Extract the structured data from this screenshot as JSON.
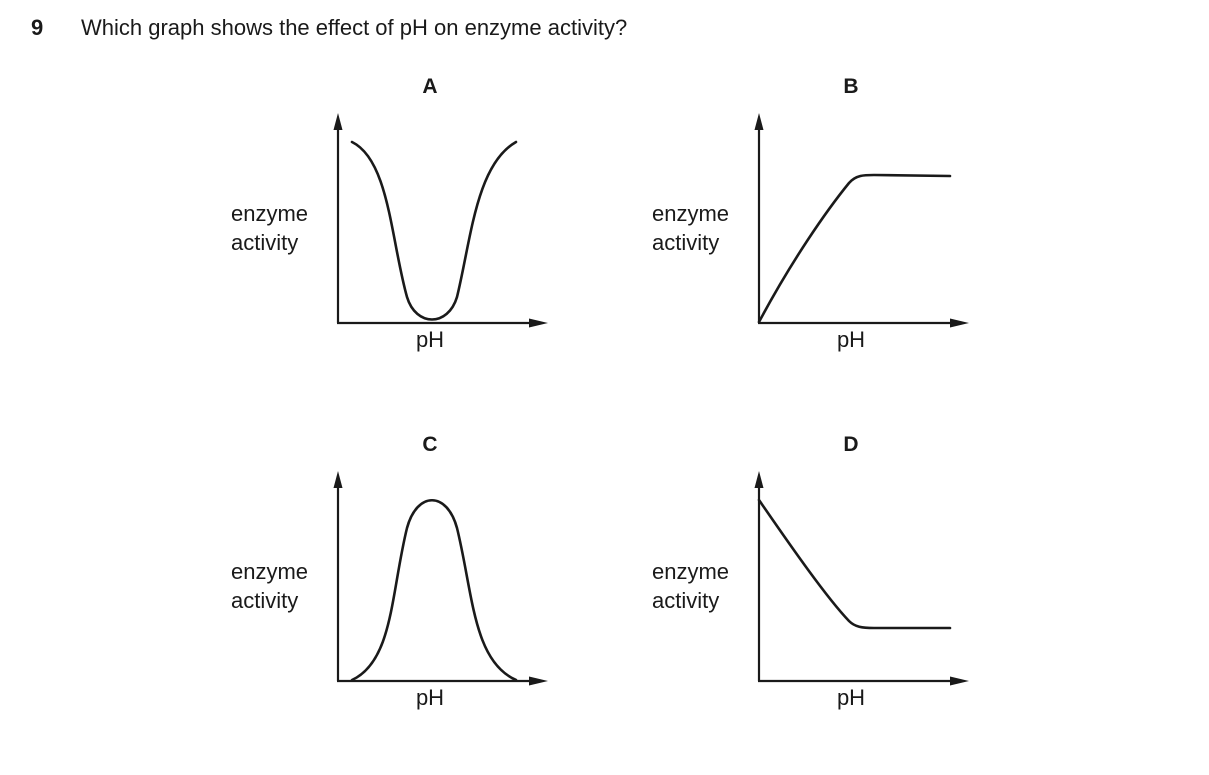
{
  "question": {
    "number": "9",
    "text": "Which graph shows the effect of pH on enzyme activity?"
  },
  "graphs": [
    {
      "letter": "A",
      "ylabel": "enzyme\nactivity",
      "xlabel": "pH",
      "shape": "valley"
    },
    {
      "letter": "B",
      "ylabel": "enzyme\nactivity",
      "xlabel": "pH",
      "shape": "rise-then-plateau"
    },
    {
      "letter": "C",
      "ylabel": "enzyme\nactivity",
      "xlabel": "pH",
      "shape": "peak"
    },
    {
      "letter": "D",
      "ylabel": "enzyme\nactivity",
      "xlabel": "pH",
      "shape": "fall-then-plateau"
    }
  ]
}
